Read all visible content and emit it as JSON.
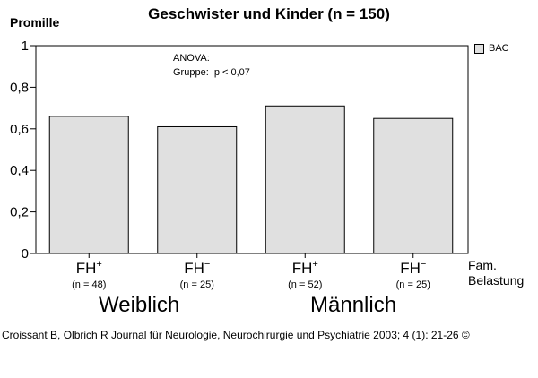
{
  "chart_data": {
    "type": "bar",
    "title": "Geschwister und Kinder (n = 150)",
    "ylabel": "Promille",
    "ylim": [
      0,
      1
    ],
    "yticks": [
      "0",
      "0,2",
      "0,4",
      "0,6",
      "0,8",
      "1"
    ],
    "categories": [
      {
        "base": "FH",
        "sup": "+",
        "n_label": "(n = 48)"
      },
      {
        "base": "FH",
        "sup": "−",
        "n_label": "(n = 25)"
      },
      {
        "base": "FH",
        "sup": "+",
        "n_label": "(n = 52)"
      },
      {
        "base": "FH",
        "sup": "−",
        "n_label": "(n = 25)"
      }
    ],
    "series": [
      {
        "name": "BAC",
        "values": [
          0.66,
          0.61,
          0.71,
          0.65
        ]
      }
    ],
    "groups": [
      "Weiblich",
      "Männlich"
    ],
    "xlabel_lines": [
      "Fam.",
      "Belastung"
    ],
    "legend": {
      "label": "BAC",
      "position": "top-right"
    },
    "annotation_lines": [
      "ANOVA:",
      "Gruppe:  p < 0,07"
    ],
    "bar_color": "#e0e0e0",
    "grid": false
  },
  "footer": "Croissant B, Olbrich R Journal für Neurologie, Neurochirurgie und Psychiatrie 2003; 4 (1): 21-26 ©"
}
